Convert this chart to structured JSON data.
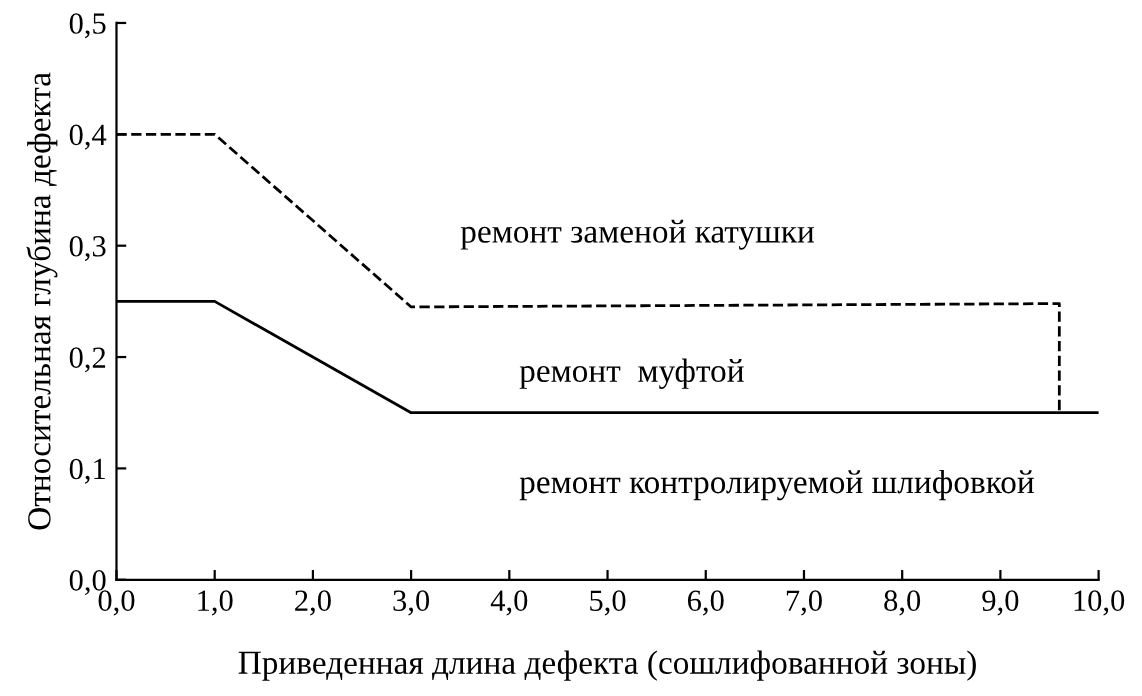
{
  "chart_data": {
    "type": "line",
    "xlabel": "Приведенная длина дефекта (сошлифованной зоны)",
    "ylabel": "Относительная глубина дефекта",
    "series": [
      {
        "x": [
          0,
          1,
          3,
          9.6,
          9.6
        ],
        "values": [
          0.4,
          0.4,
          0.245,
          0.248,
          0.15
        ],
        "color": "#000000",
        "line_style": "dashed"
      },
      {
        "x": [
          0,
          1,
          3,
          10
        ],
        "values": [
          0.25,
          0.25,
          0.15,
          0.15
        ],
        "color": "#000000",
        "line_style": "solid"
      }
    ],
    "annotations": [
      "ремонт заменой катушки",
      "ремонт  муфтой",
      "ремонт контролируемой шлифовкой"
    ],
    "xlim": [
      0,
      10
    ],
    "ylim": [
      0,
      0.5
    ],
    "xticks": [
      {
        "value": 0,
        "label": "0,0"
      },
      {
        "value": 1,
        "label": "1,0"
      },
      {
        "value": 2,
        "label": "2,0"
      },
      {
        "value": 3,
        "label": "3,0"
      },
      {
        "value": 4,
        "label": "4,0"
      },
      {
        "value": 5,
        "label": "5,0"
      },
      {
        "value": 6,
        "label": "6,0"
      },
      {
        "value": 7,
        "label": "7,0"
      },
      {
        "value": 8,
        "label": "8,0"
      },
      {
        "value": 9,
        "label": "9,0"
      },
      {
        "value": 10,
        "label": "10,0"
      }
    ],
    "yticks": [
      {
        "value": 0,
        "label": "0,0"
      },
      {
        "value": 0.1,
        "label": "0,1"
      },
      {
        "value": 0.2,
        "label": "0,2"
      },
      {
        "value": 0.3,
        "label": "0,3"
      },
      {
        "value": 0.4,
        "label": "0,4"
      },
      {
        "value": 0.5,
        "label": "0,5"
      }
    ],
    "grid": false,
    "legend": false,
    "marker": "none"
  }
}
